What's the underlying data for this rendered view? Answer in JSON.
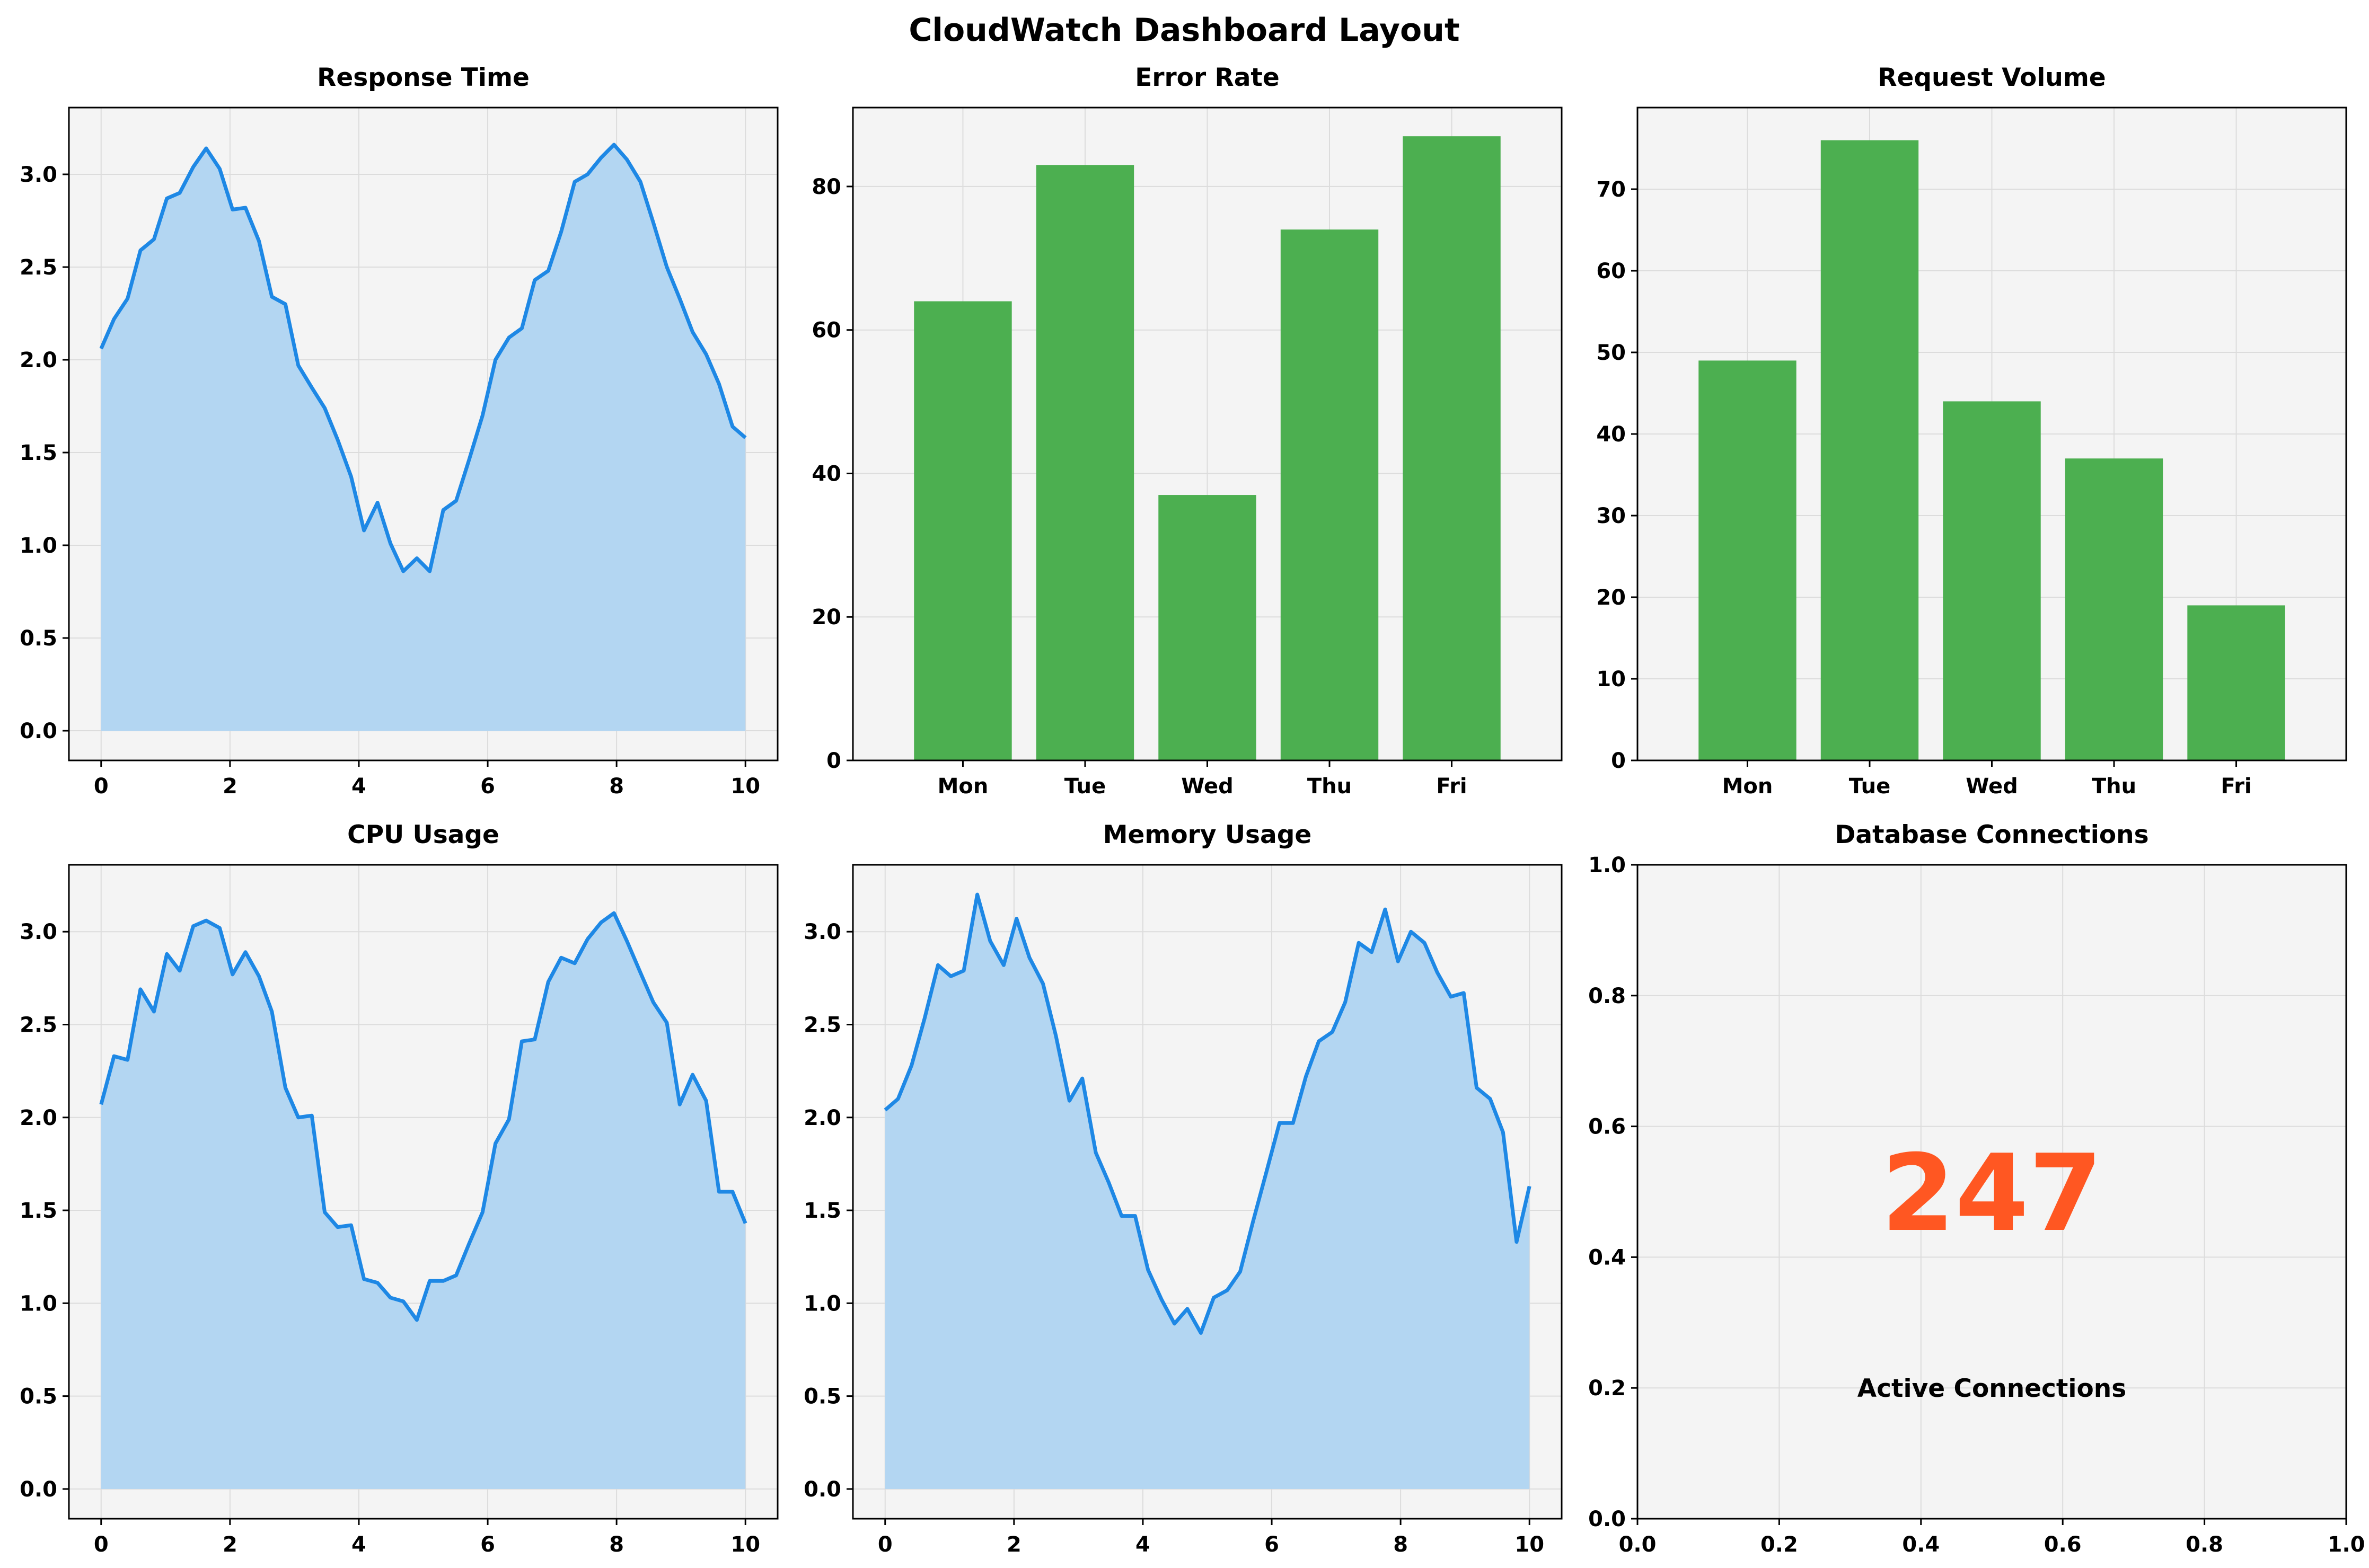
{
  "dashboard": {
    "title": "CloudWatch Dashboard Layout"
  },
  "colors": {
    "line": "#1e88e5",
    "fill": "#b3d6f2",
    "bar": "#4caf50",
    "gauge": "#ff5722",
    "panel_bg": "#f4f4f4",
    "grid": "#dcdcdc"
  },
  "chart_data": [
    {
      "id": "response_time",
      "type": "area",
      "title": "Response Time",
      "xlim": [
        0,
        10
      ],
      "ylim": [
        0,
        3.2
      ],
      "xticks": [
        0,
        2,
        4,
        6,
        8,
        10
      ],
      "yticks": [
        0.0,
        0.5,
        1.0,
        1.5,
        2.0,
        2.5,
        3.0
      ],
      "grid": true,
      "x": [
        0.0,
        0.2,
        0.41,
        0.61,
        0.82,
        1.02,
        1.22,
        1.43,
        1.63,
        1.84,
        2.04,
        2.24,
        2.45,
        2.65,
        2.86,
        3.06,
        3.27,
        3.47,
        3.67,
        3.88,
        4.08,
        4.29,
        4.49,
        4.69,
        4.9,
        5.1,
        5.31,
        5.51,
        5.71,
        5.92,
        6.12,
        6.33,
        6.53,
        6.73,
        6.94,
        7.14,
        7.35,
        7.55,
        7.76,
        7.96,
        8.16,
        8.37,
        8.57,
        8.78,
        8.98,
        9.18,
        9.39,
        9.59,
        9.8,
        10.0
      ],
      "y": [
        2.06,
        2.22,
        2.33,
        2.59,
        2.65,
        2.87,
        2.9,
        3.04,
        3.14,
        3.03,
        2.81,
        2.82,
        2.64,
        2.34,
        2.3,
        1.97,
        1.85,
        1.74,
        1.57,
        1.37,
        1.08,
        1.23,
        1.01,
        0.86,
        0.93,
        0.86,
        1.19,
        1.24,
        1.46,
        1.7,
        2.0,
        2.12,
        2.17,
        2.43,
        2.48,
        2.69,
        2.96,
        3.0,
        3.09,
        3.16,
        3.08,
        2.96,
        2.74,
        2.5,
        2.33,
        2.15,
        2.03,
        1.87,
        1.64,
        1.58
      ]
    },
    {
      "id": "error_rate",
      "type": "bar",
      "title": "Error Rate",
      "categories": [
        "Mon",
        "Tue",
        "Wed",
        "Thu",
        "Fri"
      ],
      "values": [
        64,
        83,
        37,
        74,
        87
      ],
      "ylim": [
        0,
        91
      ],
      "yticks": [
        0,
        20,
        40,
        60,
        80
      ],
      "grid": true
    },
    {
      "id": "request_volume",
      "type": "bar",
      "title": "Request Volume",
      "categories": [
        "Mon",
        "Tue",
        "Wed",
        "Thu",
        "Fri"
      ],
      "values": [
        49,
        76,
        44,
        37,
        19
      ],
      "ylim": [
        0,
        80
      ],
      "yticks": [
        0,
        10,
        20,
        30,
        40,
        50,
        60,
        70
      ],
      "grid": true
    },
    {
      "id": "cpu_usage",
      "type": "area",
      "title": "CPU Usage",
      "xlim": [
        0,
        10
      ],
      "ylim": [
        0,
        3.2
      ],
      "xticks": [
        0,
        2,
        4,
        6,
        8,
        10
      ],
      "yticks": [
        0.0,
        0.5,
        1.0,
        1.5,
        2.0,
        2.5,
        3.0
      ],
      "grid": true,
      "x": [
        0.0,
        0.2,
        0.41,
        0.61,
        0.82,
        1.02,
        1.22,
        1.43,
        1.63,
        1.84,
        2.04,
        2.24,
        2.45,
        2.65,
        2.86,
        3.06,
        3.27,
        3.47,
        3.67,
        3.88,
        4.08,
        4.29,
        4.49,
        4.69,
        4.9,
        5.1,
        5.31,
        5.51,
        5.71,
        5.92,
        6.12,
        6.33,
        6.53,
        6.73,
        6.94,
        7.14,
        7.35,
        7.55,
        7.76,
        7.96,
        8.16,
        8.37,
        8.57,
        8.78,
        8.98,
        9.18,
        9.39,
        9.59,
        9.8,
        10.0
      ],
      "y": [
        2.07,
        2.33,
        2.31,
        2.69,
        2.57,
        2.88,
        2.79,
        3.03,
        3.06,
        3.02,
        2.77,
        2.89,
        2.76,
        2.57,
        2.16,
        2.0,
        2.01,
        1.49,
        1.41,
        1.42,
        1.13,
        1.11,
        1.03,
        1.01,
        0.91,
        1.12,
        1.12,
        1.15,
        1.32,
        1.49,
        1.86,
        1.99,
        2.41,
        2.42,
        2.73,
        2.86,
        2.83,
        2.96,
        3.05,
        3.1,
        2.95,
        2.78,
        2.62,
        2.51,
        2.07,
        2.23,
        2.09,
        1.6,
        1.6,
        1.43
      ]
    },
    {
      "id": "memory_usage",
      "type": "area",
      "title": "Memory Usage",
      "xlim": [
        0,
        10
      ],
      "ylim": [
        0,
        3.2
      ],
      "xticks": [
        0,
        2,
        4,
        6,
        8,
        10
      ],
      "yticks": [
        0.0,
        0.5,
        1.0,
        1.5,
        2.0,
        2.5,
        3.0
      ],
      "grid": true,
      "x": [
        0.0,
        0.2,
        0.41,
        0.61,
        0.82,
        1.02,
        1.22,
        1.43,
        1.63,
        1.84,
        2.04,
        2.24,
        2.45,
        2.65,
        2.86,
        3.06,
        3.27,
        3.47,
        3.67,
        3.88,
        4.08,
        4.29,
        4.49,
        4.69,
        4.9,
        5.1,
        5.31,
        5.51,
        5.71,
        5.92,
        6.12,
        6.33,
        6.53,
        6.73,
        6.94,
        7.14,
        7.35,
        7.55,
        7.76,
        7.96,
        8.16,
        8.37,
        8.57,
        8.78,
        8.98,
        9.18,
        9.39,
        9.59,
        9.8,
        10.0
      ],
      "y": [
        2.04,
        2.1,
        2.28,
        2.53,
        2.82,
        2.76,
        2.79,
        3.2,
        2.95,
        2.82,
        3.07,
        2.86,
        2.72,
        2.44,
        2.09,
        2.21,
        1.81,
        1.65,
        1.47,
        1.47,
        1.18,
        1.02,
        0.89,
        0.97,
        0.84,
        1.03,
        1.07,
        1.17,
        1.44,
        1.71,
        1.97,
        1.97,
        2.22,
        2.41,
        2.46,
        2.62,
        2.94,
        2.89,
        3.12,
        2.84,
        3.0,
        2.94,
        2.78,
        2.65,
        2.67,
        2.16,
        2.1,
        1.92,
        1.33,
        1.63
      ]
    },
    {
      "id": "database_connections",
      "type": "gauge",
      "title": "Database Connections",
      "value_text": "247",
      "label": "Active Connections",
      "xlim": [
        0,
        1
      ],
      "ylim": [
        0,
        1
      ],
      "xticks": [
        0.0,
        0.2,
        0.4,
        0.6,
        0.8,
        1.0
      ],
      "yticks": [
        0.0,
        0.2,
        0.4,
        0.6,
        0.8,
        1.0
      ],
      "value_pos": [
        0.5,
        0.5
      ],
      "label_pos": [
        0.5,
        0.2
      ],
      "grid": true
    }
  ]
}
